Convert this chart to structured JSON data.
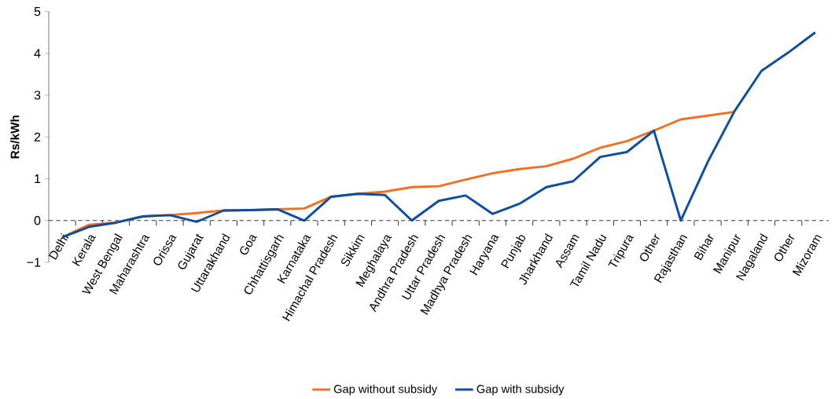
{
  "chart_data": {
    "type": "line",
    "ylabel": "Rs/kWh",
    "categories": [
      "Delhi",
      "Kerala",
      "West Bengal",
      "Maharashtra",
      "Orissa",
      "Gujarat",
      "Uttarakhand",
      "Goa",
      "Chhattisgarh",
      "Karnataka",
      "Himachal Pradesh",
      "Sikkim",
      "Meghalaya",
      "Andhra Pradesh",
      "Uttar Pradesh",
      "Madhya Pradesh",
      "Haryana",
      "Punjab",
      "Jharkhand",
      "Assam",
      "Tamil Nadu",
      "Tripura",
      "Other",
      "Rajasthan",
      "Bihar",
      "Manipur",
      "Nagaland",
      "Other",
      "Mizoram"
    ],
    "series": [
      {
        "name": "Gap without subsidy",
        "color": "#f37021",
        "values": [
          -0.4,
          -0.1,
          -0.05,
          0.1,
          0.13,
          0.18,
          0.24,
          0.25,
          0.27,
          0.29,
          0.57,
          0.64,
          0.69,
          0.8,
          0.82,
          0.98,
          1.13,
          1.23,
          1.3,
          1.48,
          1.74,
          1.9,
          2.15,
          2.42,
          2.51,
          2.6,
          null,
          null,
          null
        ]
      },
      {
        "name": "Gap with subsidy",
        "color": "#0d4ea0",
        "values": [
          -0.4,
          -0.15,
          -0.05,
          0.1,
          0.13,
          -0.03,
          0.24,
          0.25,
          0.27,
          0.0,
          0.57,
          0.64,
          0.61,
          0.0,
          0.47,
          0.6,
          0.16,
          0.4,
          0.8,
          0.94,
          1.52,
          1.64,
          2.15,
          0.0,
          1.4,
          2.62,
          3.58,
          4.02,
          4.5
        ]
      }
    ],
    "ylim": [
      -1,
      5
    ],
    "yticks": [
      {
        "value": -1,
        "label": "−1"
      },
      0,
      1,
      2,
      3,
      4,
      5
    ],
    "ref_lines": [
      {
        "axis": "y",
        "value": 0,
        "color": "#000000",
        "line_style": "dashed"
      }
    ],
    "legend": "bottom",
    "marker": "none"
  }
}
